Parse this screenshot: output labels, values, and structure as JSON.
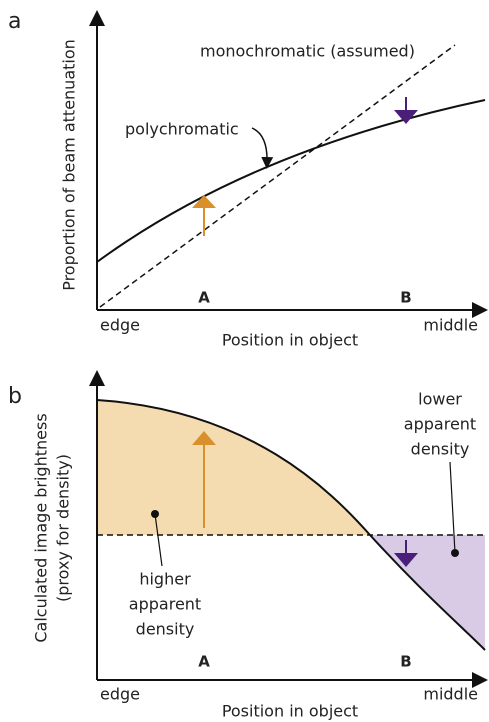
{
  "panel_a": {
    "label": "a",
    "y_axis_label": "Proportion of beam attenuation",
    "x_axis_label": "Position in object",
    "x_start_label": "edge",
    "x_end_label": "middle",
    "point_a": "A",
    "point_b": "B",
    "mono_label": "monochromatic (assumed)",
    "poly_label": "polychromatic"
  },
  "panel_b": {
    "label": "b",
    "y_axis_label": [
      "Calculated image brightness",
      "(proxy for density)"
    ],
    "x_axis_label": "Position in object",
    "x_start_label": "edge",
    "x_end_label": "middle",
    "point_a": "A",
    "point_b": "B",
    "higher_label": [
      "higher",
      "apparent",
      "density"
    ],
    "lower_label": [
      "lower",
      "apparent",
      "density"
    ]
  }
}
